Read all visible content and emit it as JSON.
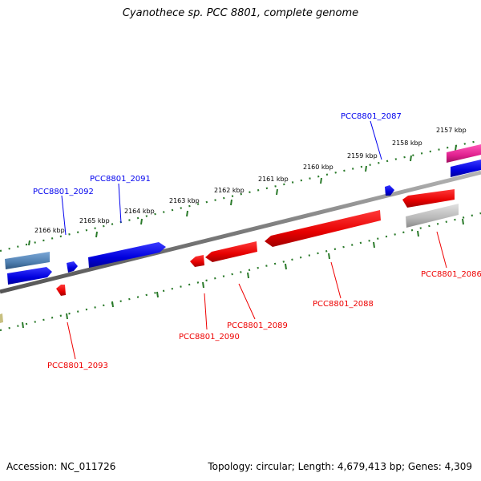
{
  "title": "Cyanothece sp. PCC 8801, complete genome",
  "accession": "Accession: NC_011726",
  "stats": "Topology: circular; Length: 4,679,413 bp; Genes: 4,309",
  "colors": {
    "forward": "#0000ee",
    "reverse": "#ee0000",
    "backbone": "#777777",
    "ticks": "#2a7a2a",
    "rna_forward": "#4f7fb0",
    "rna_reverse": "#aaaaaa",
    "magenta": "#e0208f",
    "olive": "#c8c080"
  },
  "ruler": {
    "ticks": [
      {
        "label": "2157 kbp"
      },
      {
        "label": "2158 kbp"
      },
      {
        "label": "2159 kbp"
      },
      {
        "label": "2160 kbp"
      },
      {
        "label": "2161 kbp"
      },
      {
        "label": "2162 kbp"
      },
      {
        "label": "2163 kbp"
      },
      {
        "label": "2164 kbp"
      },
      {
        "label": "2165 kbp"
      },
      {
        "label": "2166 kbp"
      }
    ]
  },
  "genes": [
    {
      "label": "PCC8801_2087",
      "strand": "forward"
    },
    {
      "label": "PCC8801_2091",
      "strand": "forward"
    },
    {
      "label": "PCC8801_2092",
      "strand": "forward"
    },
    {
      "label": "PCC8801_2086",
      "strand": "reverse"
    },
    {
      "label": "PCC8801_2088",
      "strand": "reverse"
    },
    {
      "label": "PCC8801_2089",
      "strand": "reverse"
    },
    {
      "label": "PCC8801_2090",
      "strand": "reverse"
    },
    {
      "label": "PCC8801_2093",
      "strand": "reverse"
    }
  ]
}
